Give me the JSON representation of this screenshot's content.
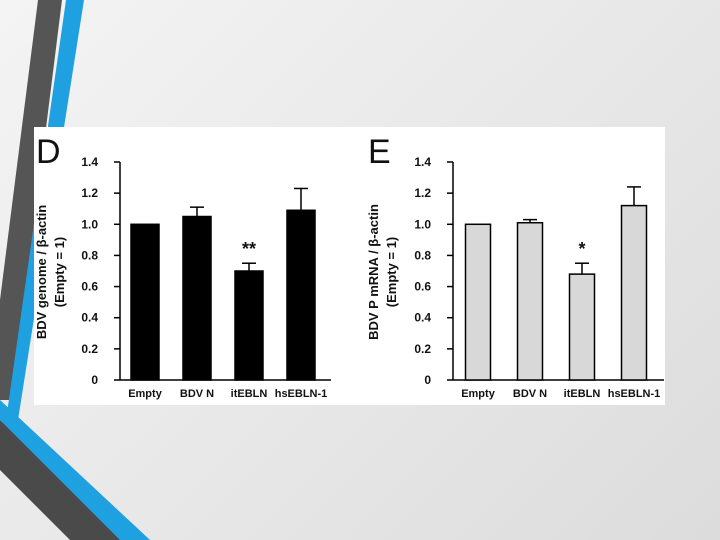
{
  "chart_data": [
    {
      "panel": "D",
      "type": "bar",
      "ylabel": "BDV genome / β-actin",
      "ylabel2": "(Empty = 1)",
      "ylim": [
        0,
        1.4
      ],
      "yticks": [
        "0",
        "0.2",
        "0.4",
        "0.6",
        "0.8",
        "1.0",
        "1.2",
        "1.4"
      ],
      "categories": [
        "Empty",
        "BDV N",
        "itEBLN",
        "hsEBLN-1"
      ],
      "values": [
        1.0,
        1.05,
        0.7,
        1.09
      ],
      "errors": [
        0,
        0.06,
        0.05,
        0.14
      ],
      "annotations": [
        "",
        "",
        "**",
        ""
      ],
      "bar_color": "#000000"
    },
    {
      "panel": "E",
      "type": "bar",
      "ylabel": "BDV P mRNA / β-actin",
      "ylabel2": "(Empty = 1)",
      "ylim": [
        0,
        1.4
      ],
      "yticks": [
        "0",
        "0.2",
        "0.4",
        "0.6",
        "0.8",
        "1.0",
        "1.2",
        "1.4"
      ],
      "categories": [
        "Empty",
        "BDV N",
        "itEBLN",
        "hsEBLN-1"
      ],
      "values": [
        1.0,
        1.01,
        0.68,
        1.12
      ],
      "errors": [
        0,
        0.02,
        0.07,
        0.12
      ],
      "annotations": [
        "",
        "",
        "*",
        ""
      ],
      "bar_color": "#d8d8d8"
    }
  ]
}
